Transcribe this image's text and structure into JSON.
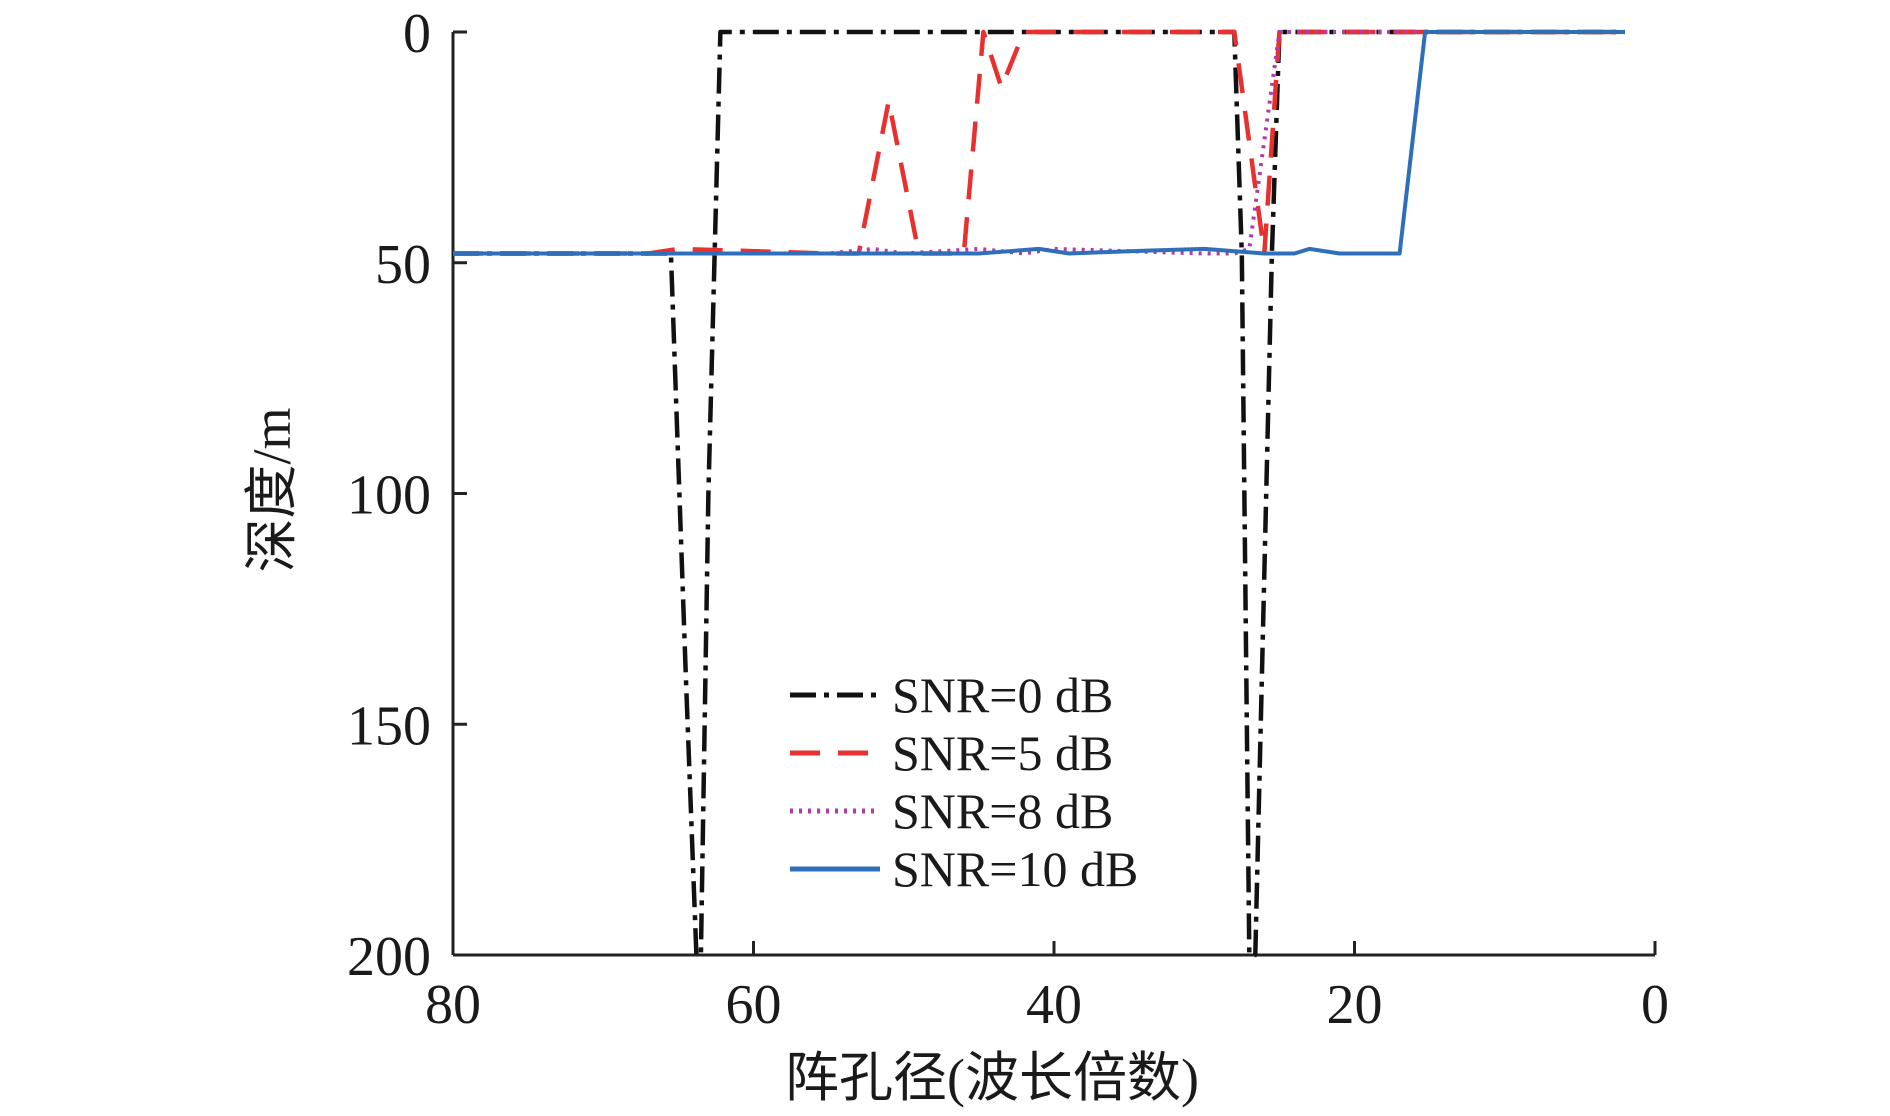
{
  "chart_data": {
    "type": "line",
    "title": "",
    "xlabel": "阵孔径(波长倍数)",
    "ylabel": "深度/m",
    "xlim": [
      80,
      0
    ],
    "ylim": [
      200,
      0
    ],
    "x_ticks": [
      "80",
      "60",
      "40",
      "20",
      "0"
    ],
    "y_ticks": [
      "0",
      "50",
      "100",
      "150",
      "200"
    ],
    "grid": false,
    "legend_position": "bottom-center",
    "series": [
      {
        "name": "SNR=0 dB",
        "color": "#111111",
        "style": "dashdot",
        "x": [
          80,
          66,
          65.5,
          64.5,
          63.8,
          63.5,
          63,
          62.2,
          30,
          28,
          27.5,
          27,
          26.6,
          25.5,
          25,
          16,
          2
        ],
        "y": [
          48,
          48,
          48,
          140,
          200,
          200,
          100,
          0,
          0,
          0,
          48,
          200,
          200,
          48,
          0,
          0,
          0
        ]
      },
      {
        "name": "SNR=5 dB",
        "color": "#e8312f",
        "style": "dashed",
        "x": [
          80,
          67,
          65,
          55,
          53,
          51,
          49,
          46,
          44.7,
          43.5,
          42,
          41,
          30,
          28,
          26,
          25,
          16,
          2
        ],
        "y": [
          48,
          48,
          47,
          48,
          48,
          15,
          48,
          48,
          0,
          12,
          0,
          0,
          0,
          0,
          48,
          0,
          0,
          0
        ]
      },
      {
        "name": "SNR=8 dB",
        "color": "#b03ab0",
        "style": "dotted",
        "x": [
          80,
          55,
          52,
          50,
          45,
          42,
          40,
          30,
          28,
          27,
          25,
          16,
          2
        ],
        "y": [
          48,
          48,
          47,
          48,
          47,
          48,
          47,
          48,
          48,
          47,
          0,
          0,
          0
        ]
      },
      {
        "name": "SNR=10 dB",
        "color": "#2f6fba",
        "style": "solid",
        "x": [
          80,
          45,
          41,
          39,
          35,
          30,
          26,
          24,
          23,
          21,
          17,
          15.3,
          2
        ],
        "y": [
          48,
          48,
          47,
          48,
          47.5,
          47,
          48,
          48,
          47,
          48,
          48,
          0,
          0
        ]
      }
    ]
  }
}
